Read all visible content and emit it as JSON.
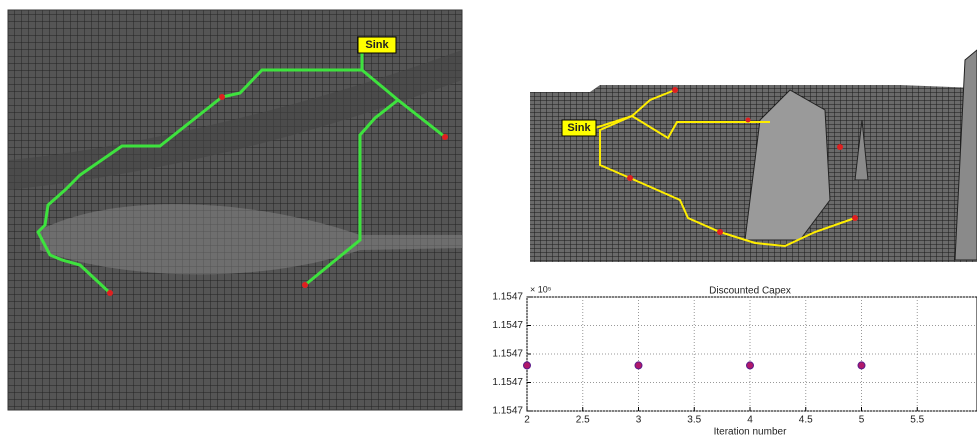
{
  "chart_data": {
    "type": "scatter",
    "title": "Discounted Capex",
    "xlabel": "Iteration number",
    "y_multiplier": "× 10⁵",
    "x": [
      2,
      3,
      4,
      5
    ],
    "values": [
      1.1547016,
      1.1547016,
      1.1547016,
      1.1547016
    ],
    "color": "#b0186a",
    "xlim": [
      2,
      6
    ],
    "xticks": [
      2,
      2.5,
      3,
      3.5,
      4,
      4.5,
      5,
      5.5
    ],
    "ylim": [
      1.1547,
      1.154704
    ],
    "yticks": [
      {
        "value": 1.1547,
        "label": "1.1547"
      },
      {
        "value": 1.154701,
        "label": "1.1547"
      },
      {
        "value": 1.154702,
        "label": "1.1547"
      },
      {
        "value": 1.154703,
        "label": "1.1547"
      },
      {
        "value": 1.154704,
        "label": "1.1547"
      }
    ],
    "grid": true
  },
  "left_map": {
    "label": "Sink"
  },
  "right_map": {
    "label": "Sink"
  }
}
